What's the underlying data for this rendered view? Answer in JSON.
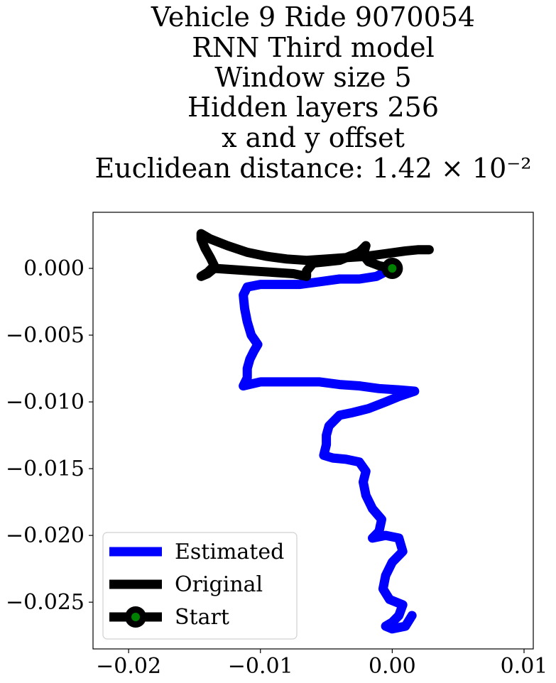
{
  "chart_data": {
    "type": "line",
    "title_lines": [
      "Vehicle 9 Ride 9070054",
      "RNN Third model",
      "Window size 5",
      "Hidden layers 256",
      "x and y offset",
      "Euclidean distance: 1.42 × 10⁻²"
    ],
    "xlabel": "",
    "ylabel": "",
    "xlim": [
      -0.0227,
      0.0107
    ],
    "ylim": [
      -0.0285,
      0.0042
    ],
    "x_ticks": [
      -0.02,
      -0.01,
      0.0,
      0.01
    ],
    "x_tick_labels": [
      "−0.02",
      "−0.01",
      "0.00",
      "0.01"
    ],
    "y_ticks": [
      0.0,
      -0.005,
      -0.01,
      -0.015,
      -0.02,
      -0.025
    ],
    "y_tick_labels": [
      "0.000",
      "−0.005",
      "−0.010",
      "−0.015",
      "−0.020",
      "−0.025"
    ],
    "grid": false,
    "legend_position": "lower-left",
    "series": [
      {
        "name": "Estimated",
        "color": "#0000ff",
        "points": [
          [
            0.0,
            0.0
          ],
          [
            -0.0012,
            -0.0006
          ],
          [
            -0.0025,
            -0.0008
          ],
          [
            -0.004,
            -0.0008
          ],
          [
            -0.0055,
            -0.001
          ],
          [
            -0.007,
            -0.0012
          ],
          [
            -0.0085,
            -0.0012
          ],
          [
            -0.01,
            -0.0012
          ],
          [
            -0.011,
            -0.0014
          ],
          [
            -0.0113,
            -0.002
          ],
          [
            -0.0112,
            -0.003
          ],
          [
            -0.011,
            -0.004
          ],
          [
            -0.0107,
            -0.005
          ],
          [
            -0.0102,
            -0.0057
          ],
          [
            -0.0105,
            -0.0062
          ],
          [
            -0.0108,
            -0.0068
          ],
          [
            -0.011,
            -0.0075
          ],
          [
            -0.011,
            -0.0082
          ],
          [
            -0.0113,
            -0.0088
          ],
          [
            -0.01,
            -0.0085
          ],
          [
            -0.0085,
            -0.0085
          ],
          [
            -0.007,
            -0.0085
          ],
          [
            -0.0055,
            -0.0085
          ],
          [
            -0.004,
            -0.0087
          ],
          [
            -0.0025,
            -0.0088
          ],
          [
            -0.001,
            -0.009
          ],
          [
            0.0005,
            -0.0091
          ],
          [
            0.0017,
            -0.0092
          ],
          [
            0.0005,
            -0.0096
          ],
          [
            -0.0005,
            -0.01
          ],
          [
            -0.0018,
            -0.0105
          ],
          [
            -0.003,
            -0.0108
          ],
          [
            -0.004,
            -0.011
          ],
          [
            -0.0048,
            -0.0118
          ],
          [
            -0.005,
            -0.0125
          ],
          [
            -0.005,
            -0.0132
          ],
          [
            -0.0052,
            -0.014
          ],
          [
            -0.0045,
            -0.0142
          ],
          [
            -0.0035,
            -0.0143
          ],
          [
            -0.0025,
            -0.0145
          ],
          [
            -0.002,
            -0.0152
          ],
          [
            -0.0022,
            -0.016
          ],
          [
            -0.002,
            -0.017
          ],
          [
            -0.0015,
            -0.018
          ],
          [
            -0.0008,
            -0.0188
          ],
          [
            -0.001,
            -0.0197
          ],
          [
            -0.0015,
            -0.0202
          ],
          [
            -0.0005,
            -0.02
          ],
          [
            0.0005,
            -0.0202
          ],
          [
            0.0008,
            -0.0212
          ],
          [
            0.0,
            -0.022
          ],
          [
            -0.0005,
            -0.023
          ],
          [
            -0.0007,
            -0.024
          ],
          [
            -0.0002,
            -0.0248
          ],
          [
            0.0008,
            -0.0252
          ],
          [
            0.0005,
            -0.026
          ],
          [
            0.0,
            -0.0265
          ],
          [
            -0.0005,
            -0.0268
          ],
          [
            0.0,
            -0.027
          ],
          [
            0.001,
            -0.0268
          ],
          [
            0.0015,
            -0.026
          ]
        ]
      },
      {
        "name": "Original",
        "color": "#000000",
        "points": [
          [
            0.0,
            0.0
          ],
          [
            -0.001,
            0.0002
          ],
          [
            -0.0018,
            0.0005
          ],
          [
            -0.0022,
            0.001
          ],
          [
            -0.002,
            0.0017
          ],
          [
            -0.0025,
            0.0012
          ],
          [
            -0.003,
            0.001
          ],
          [
            -0.0035,
            0.0008
          ],
          [
            -0.004,
            0.0006
          ],
          [
            -0.005,
            0.0005
          ],
          [
            -0.006,
            0.0004
          ],
          [
            -0.0065,
            -0.0002
          ],
          [
            -0.0065,
            -0.0006
          ],
          [
            -0.0075,
            -0.0004
          ],
          [
            -0.009,
            -0.0003
          ],
          [
            -0.0105,
            -0.0002
          ],
          [
            -0.012,
            -0.0001
          ],
          [
            -0.0135,
            0.0
          ],
          [
            -0.014,
            -0.0004
          ],
          [
            -0.0145,
            -0.0006
          ],
          [
            -0.014,
            -0.0003
          ],
          [
            -0.0135,
            0.0002
          ],
          [
            -0.0138,
            0.0008
          ],
          [
            -0.0142,
            0.0015
          ],
          [
            -0.0145,
            0.0022
          ],
          [
            -0.0145,
            0.0026
          ],
          [
            -0.0138,
            0.0022
          ],
          [
            -0.0125,
            0.0017
          ],
          [
            -0.011,
            0.0012
          ],
          [
            -0.0095,
            0.0009
          ],
          [
            -0.008,
            0.0007
          ],
          [
            -0.0065,
            0.0006
          ],
          [
            -0.005,
            0.0007
          ],
          [
            -0.0035,
            0.0008
          ],
          [
            -0.002,
            0.0009
          ],
          [
            -0.0005,
            0.0011
          ],
          [
            0.001,
            0.0013
          ],
          [
            0.002,
            0.0014
          ],
          [
            0.0028,
            0.0014
          ]
        ]
      }
    ],
    "start_point": {
      "name": "Start",
      "x": 0.0,
      "y": 0.0,
      "marker_color": "#008000",
      "ring_color": "#000000"
    }
  }
}
